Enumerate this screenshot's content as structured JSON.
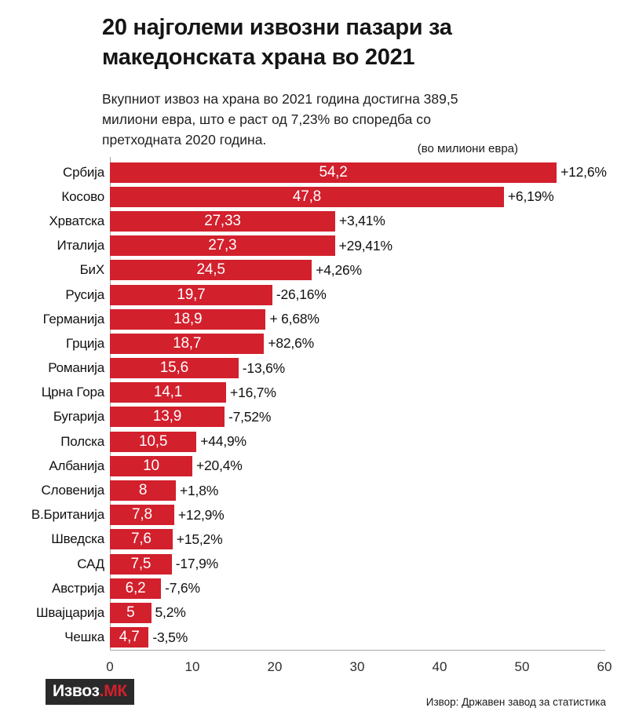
{
  "header": {
    "title_lines": [
      "20 најголеми извозни пазари за",
      "македонската храна во 2021"
    ],
    "subtitle_lines": [
      "Вкупниот извоз на храна во 2021 година достигна 389,5",
      "милиони евра, што е раст од 7,23% во споредба со",
      "претходната 2020 година."
    ],
    "unit_label": "(во милиони евра)"
  },
  "footer": {
    "logo_primary": "Извоз",
    "logo_accent": ".МК",
    "source": "Извор: Државен завод за статистика"
  },
  "colors": {
    "bar": "#d2202d",
    "bar_value_text": "#ffffff",
    "axis": "#a8a8a8",
    "text": "#1a1a1a",
    "logo_bg": "#2b2a2a",
    "logo_accent": "#d2202d"
  },
  "chart_data": {
    "type": "bar",
    "orientation": "horizontal",
    "title": "20 најголеми извозни пазари за македонската храна во 2021",
    "subtitle": "Вкупниот извоз на храна во 2021 година достигна 389,5 милиони евра, што е раст од 7,23% во споредба со претходната 2020 година.",
    "unit": "(во милиони евра)",
    "xlabel": "",
    "ylabel": "",
    "xlim": [
      0,
      60
    ],
    "xticks": [
      0,
      10,
      20,
      30,
      40,
      50,
      60
    ],
    "grid": false,
    "legend": false,
    "categories": [
      "Србија",
      "Косово",
      "Хрватска",
      "Италија",
      "БиХ",
      "Русија",
      "Германија",
      "Грција",
      "Романија",
      "Црна Гора",
      "Бугарија",
      "Полска",
      "Албанија",
      "Словенија",
      "В.Британија",
      "Шведска",
      "САД",
      "Австрија",
      "Швајцарија",
      "Чешка"
    ],
    "values": [
      54.2,
      47.8,
      27.33,
      27.3,
      24.5,
      19.7,
      18.9,
      18.7,
      15.6,
      14.1,
      13.9,
      10.5,
      10,
      8,
      7.8,
      7.6,
      7.5,
      6.2,
      5,
      4.7
    ],
    "value_labels": [
      "54,2",
      "47,8",
      "27,33",
      "27,3",
      "24,5",
      "19,7",
      "18,9",
      "18,7",
      "15,6",
      "14,1",
      "13,9",
      "10,5",
      "10",
      "8",
      "7,8",
      "7,6",
      "7,5",
      "6,2",
      "5",
      "4,7"
    ],
    "change_pct": [
      12.6,
      6.19,
      3.41,
      29.41,
      4.26,
      -26.16,
      6.68,
      82.6,
      -13.6,
      16.7,
      -7.52,
      44.9,
      20.4,
      1.8,
      12.9,
      15.2,
      -17.9,
      -7.6,
      5.2,
      -3.5
    ],
    "change_labels": [
      "+12,6%",
      "+6,19%",
      "+3,41%",
      "+29,41%",
      "+4,26%",
      "-26,16%",
      "+ 6,68%",
      "+82,6%",
      "-13,6%",
      "+16,7%",
      "-7,52%",
      "+44,9%",
      "+20,4%",
      "+1,8%",
      "+12,9%",
      "+15,2%",
      "-17,9%",
      "-7,6%",
      "5,2%",
      "-3,5%"
    ]
  }
}
